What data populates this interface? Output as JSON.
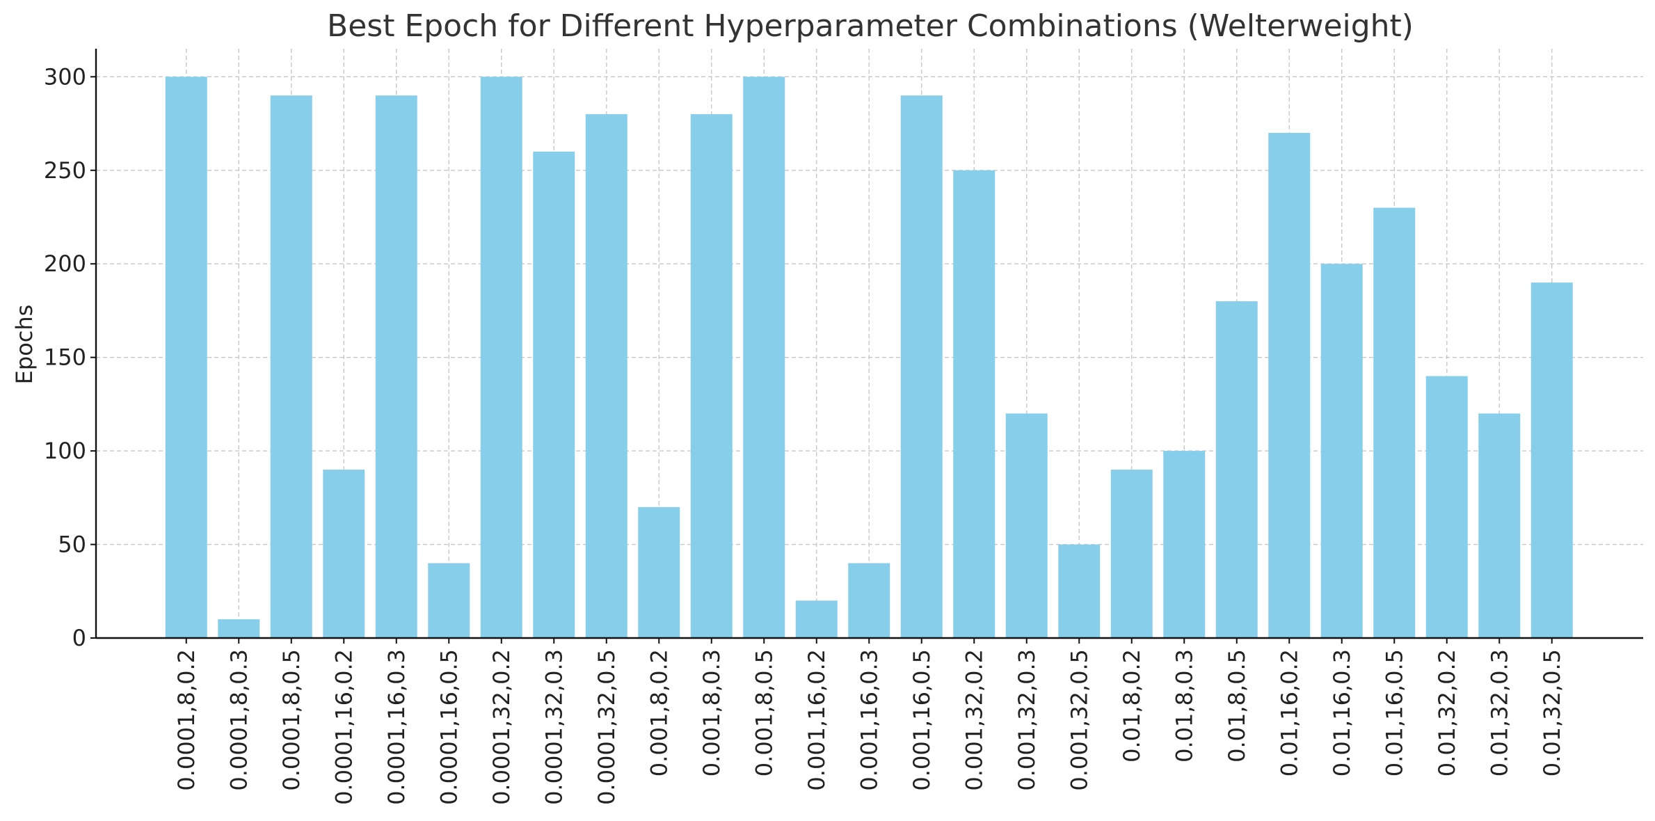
{
  "chart_data": {
    "type": "bar",
    "title": "Best Epoch for Different Hyperparameter Combinations (Welterweight)",
    "xlabel": "",
    "ylabel": "Epochs",
    "ylim": [
      0,
      315
    ],
    "yticks": [
      0,
      50,
      100,
      150,
      200,
      250,
      300
    ],
    "grid": true,
    "bar_color": "#87ceeb",
    "categories": [
      "0.0001,8,0.2",
      "0.0001,8,0.3",
      "0.0001,8,0.5",
      "0.0001,16,0.2",
      "0.0001,16,0.3",
      "0.0001,16,0.5",
      "0.0001,32,0.2",
      "0.0001,32,0.3",
      "0.0001,32,0.5",
      "0.001,8,0.2",
      "0.001,8,0.3",
      "0.001,8,0.5",
      "0.001,16,0.2",
      "0.001,16,0.3",
      "0.001,16,0.5",
      "0.001,32,0.2",
      "0.001,32,0.3",
      "0.001,32,0.5",
      "0.01,8,0.2",
      "0.01,8,0.3",
      "0.01,8,0.5",
      "0.01,16,0.2",
      "0.01,16,0.3",
      "0.01,16,0.5",
      "0.01,32,0.2",
      "0.01,32,0.3",
      "0.01,32,0.5"
    ],
    "values": [
      300,
      10,
      290,
      90,
      290,
      40,
      300,
      260,
      280,
      70,
      280,
      300,
      20,
      40,
      290,
      250,
      120,
      50,
      90,
      100,
      180,
      270,
      200,
      230,
      140,
      120,
      190
    ]
  }
}
